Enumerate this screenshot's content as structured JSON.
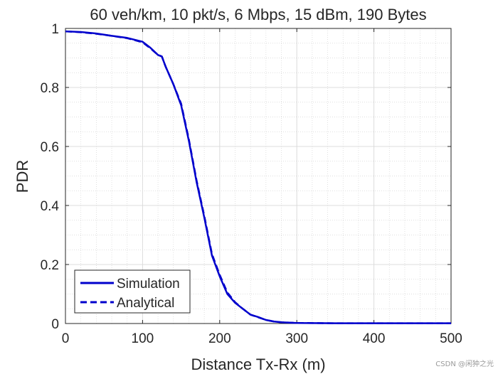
{
  "chart_data": {
    "type": "line",
    "title": "60 veh/km, 10 pkt/s, 6 Mbps, 15 dBm, 190 Bytes",
    "xlabel": "Distance Tx-Rx (m)",
    "ylabel": "PDR",
    "xlim": [
      0,
      500
    ],
    "ylim": [
      0,
      1
    ],
    "xticks": [
      0,
      100,
      200,
      300,
      400,
      500
    ],
    "yticks": [
      0,
      0.2,
      0.4,
      0.6,
      0.8,
      1
    ],
    "xtick_labels": [
      "0",
      "100",
      "200",
      "300",
      "400",
      "500"
    ],
    "ytick_labels": [
      "0",
      "0.2",
      "0.4",
      "0.6",
      "0.8",
      "1"
    ],
    "grid": true,
    "minor_grid": true,
    "legend_position": "bottom-left",
    "series": [
      {
        "name": "Simulation",
        "style": "solid",
        "color": "#0000cc",
        "x": [
          0,
          20,
          40,
          60,
          80,
          100,
          110,
          120,
          125,
          130,
          140,
          150,
          160,
          170,
          180,
          190,
          200,
          210,
          220,
          230,
          240,
          250,
          260,
          270,
          280,
          300,
          350,
          400,
          450,
          500
        ],
        "y": [
          0.99,
          0.988,
          0.983,
          0.975,
          0.968,
          0.955,
          0.935,
          0.91,
          0.905,
          0.87,
          0.81,
          0.74,
          0.62,
          0.48,
          0.36,
          0.23,
          0.16,
          0.1,
          0.07,
          0.05,
          0.03,
          0.022,
          0.012,
          0.007,
          0.004,
          0.002,
          0.001,
          0.001,
          0.001,
          0.001
        ]
      },
      {
        "name": "Analytical",
        "style": "dashed",
        "color": "#0000cc",
        "x": [
          0,
          20,
          40,
          60,
          80,
          100,
          110,
          120,
          125,
          130,
          140,
          150,
          160,
          170,
          180,
          190,
          200,
          210,
          220,
          230,
          240,
          250,
          260,
          270,
          280,
          300,
          350,
          400,
          450,
          500
        ],
        "y": [
          0.99,
          0.987,
          0.982,
          0.975,
          0.967,
          0.953,
          0.933,
          0.91,
          0.905,
          0.87,
          0.81,
          0.745,
          0.625,
          0.485,
          0.365,
          0.235,
          0.165,
          0.105,
          0.072,
          0.05,
          0.03,
          0.021,
          0.012,
          0.007,
          0.004,
          0.002,
          0.001,
          0.001,
          0.001,
          0.001
        ]
      }
    ]
  },
  "watermark": "CSDN @闲狆之光"
}
